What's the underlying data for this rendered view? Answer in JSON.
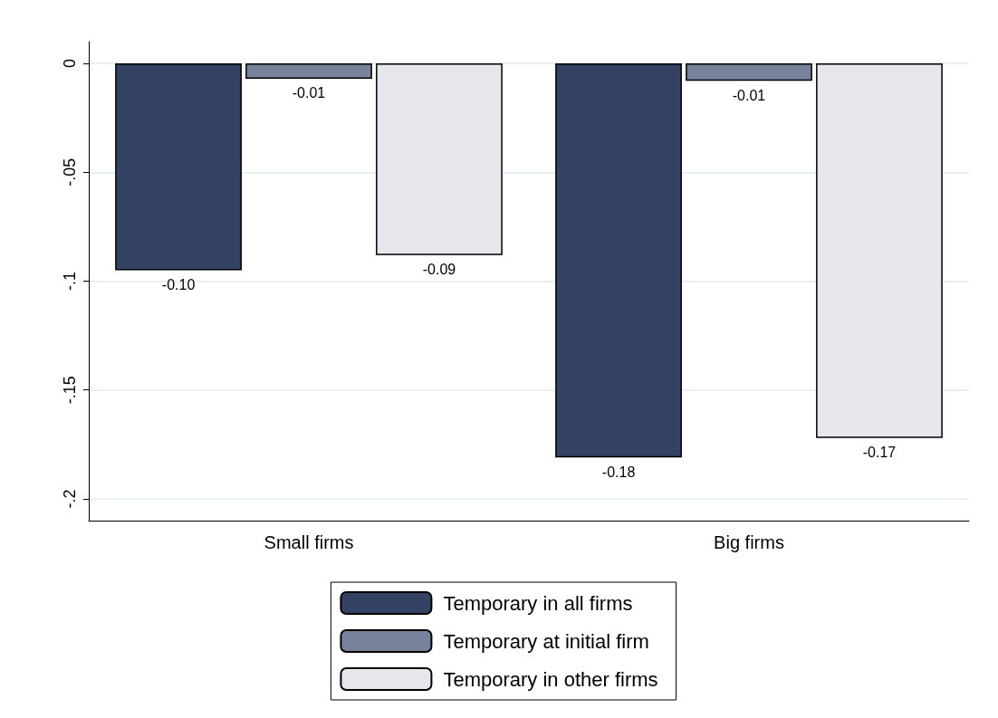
{
  "chart_data": {
    "type": "bar",
    "categories": [
      "Small firms",
      "Big firms"
    ],
    "series": [
      {
        "name": "Temporary in all firms",
        "color": "#344263",
        "values": [
          -0.095,
          -0.181
        ],
        "value_labels": [
          "-0.10",
          "-0.18"
        ]
      },
      {
        "name": "Temporary at initial firm",
        "color": "#78829b",
        "values": [
          -0.007,
          -0.008
        ],
        "value_labels": [
          "-0.01",
          "-0.01"
        ]
      },
      {
        "name": "Temporary in other firms",
        "color": "#e6e7ec",
        "values": [
          -0.088,
          -0.172
        ],
        "value_labels": [
          "-0.09",
          "-0.17"
        ]
      }
    ],
    "ylim": [
      -0.21,
      0.01
    ],
    "yticks": [
      0,
      {
        "value": -0.05,
        "label": "-.05"
      },
      {
        "value": -0.1,
        "label": "-.1"
      },
      {
        "value": -0.15,
        "label": "-.15"
      },
      {
        "value": -0.2,
        "label": "-.2"
      }
    ],
    "grid": "y",
    "legend": "bottom"
  }
}
